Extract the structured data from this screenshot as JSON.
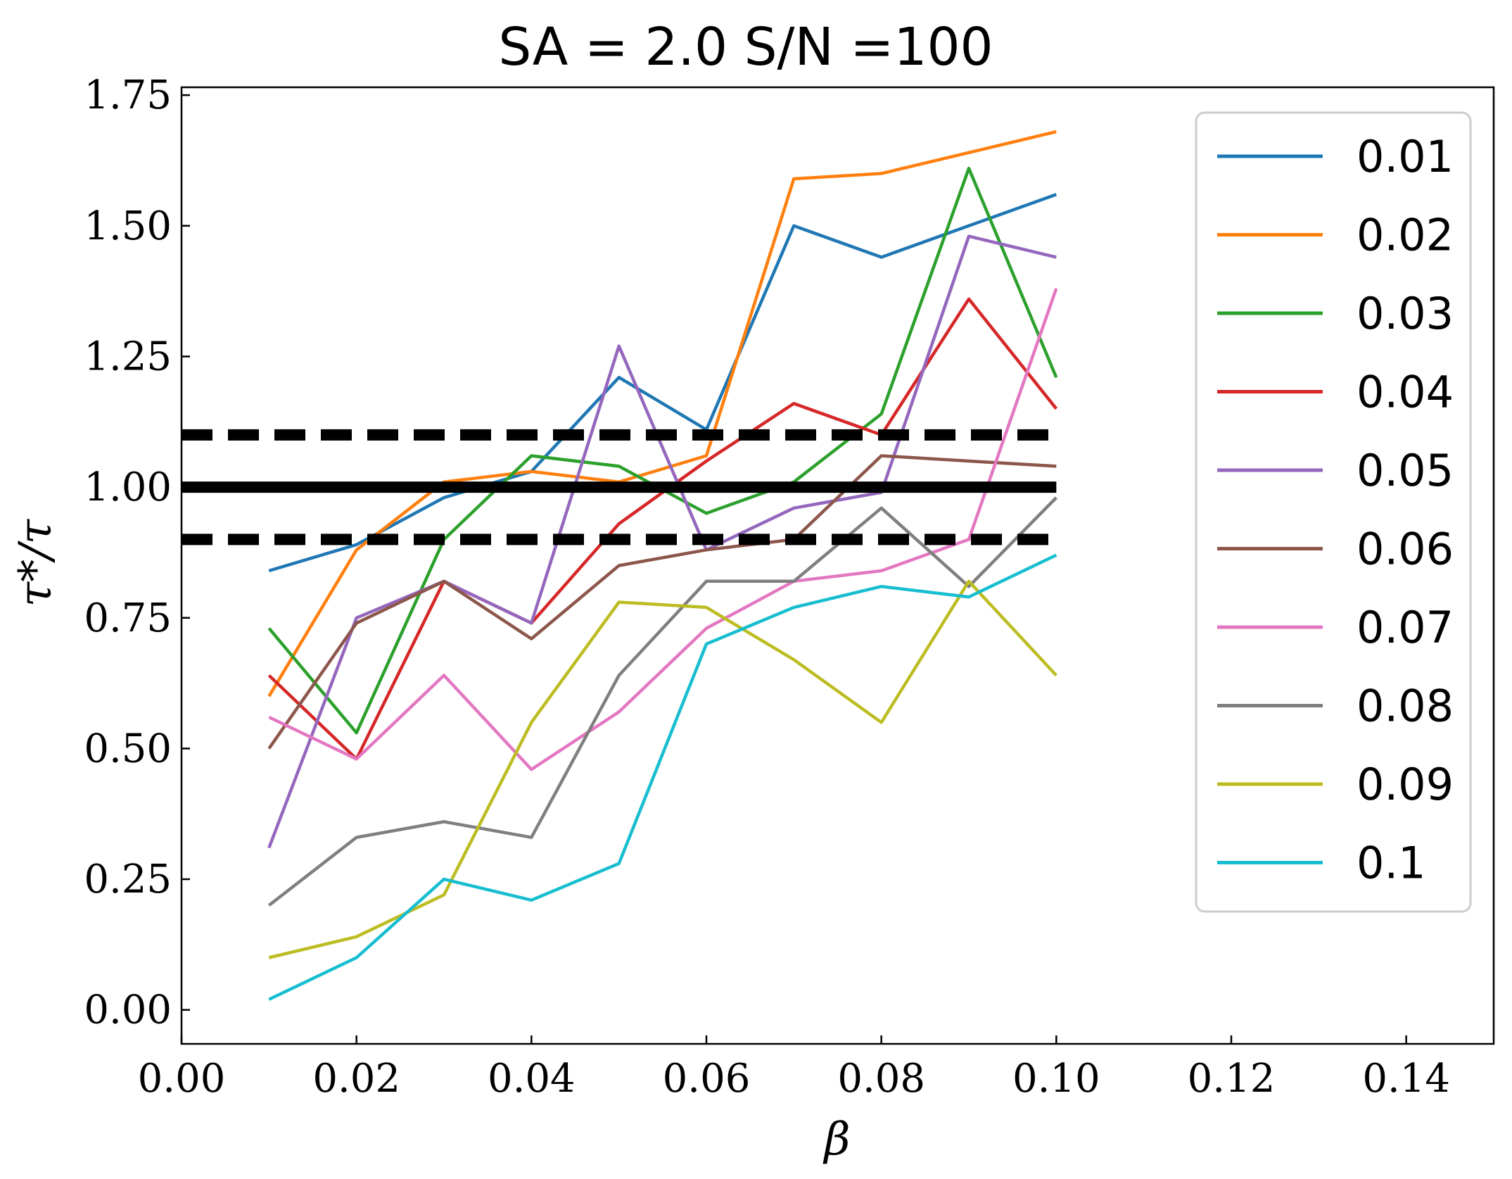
{
  "chart_data": {
    "type": "line",
    "title": "SA = 2.0 S/N =100",
    "xlabel": "β",
    "ylabel": "τ*/τ",
    "xlim": [
      0.0,
      0.15
    ],
    "ylim": [
      -0.065,
      1.765
    ],
    "x_ticks": [
      0.0,
      0.02,
      0.04,
      0.06,
      0.08,
      0.1,
      0.12,
      0.14
    ],
    "x_tick_labels": [
      "0.00",
      "0.02",
      "0.04",
      "0.06",
      "0.08",
      "0.10",
      "0.12",
      "0.14"
    ],
    "y_ticks": [
      0.0,
      0.25,
      0.5,
      0.75,
      1.0,
      1.25,
      1.5,
      1.75
    ],
    "y_tick_labels": [
      "0.00",
      "0.25",
      "0.50",
      "0.75",
      "1.00",
      "1.25",
      "1.50",
      "1.75"
    ],
    "grid": false,
    "legend_position": "right",
    "x": [
      0.01,
      0.02,
      0.03,
      0.04,
      0.05,
      0.06,
      0.07,
      0.08,
      0.09,
      0.1
    ],
    "reference_lines": [
      {
        "y": 1.0,
        "style": "solid",
        "color": "#000000"
      },
      {
        "y": 1.1,
        "style": "dashed",
        "color": "#000000"
      },
      {
        "y": 0.9,
        "style": "dashed",
        "color": "#000000"
      }
    ],
    "reference_x_range": [
      0.0,
      0.1
    ],
    "series": [
      {
        "name": "0.01",
        "color": "#1f77b4",
        "values": [
          0.84,
          0.89,
          0.98,
          1.03,
          1.21,
          1.11,
          1.5,
          1.44,
          1.5,
          1.56
        ]
      },
      {
        "name": "0.02",
        "color": "#ff7f0e",
        "values": [
          0.6,
          0.88,
          1.01,
          1.03,
          1.01,
          1.06,
          1.59,
          1.6,
          1.64,
          1.68
        ]
      },
      {
        "name": "0.03",
        "color": "#2ca02c",
        "values": [
          0.73,
          0.53,
          0.9,
          1.06,
          1.04,
          0.95,
          1.01,
          1.14,
          1.61,
          1.21
        ]
      },
      {
        "name": "0.04",
        "color": "#d62728",
        "values": [
          0.64,
          0.48,
          0.82,
          0.74,
          0.93,
          1.05,
          1.16,
          1.1,
          1.36,
          1.15
        ]
      },
      {
        "name": "0.05",
        "color": "#9467bd",
        "values": [
          0.31,
          0.75,
          0.82,
          0.74,
          1.27,
          0.88,
          0.96,
          0.99,
          1.48,
          1.44
        ]
      },
      {
        "name": "0.06",
        "color": "#8c564b",
        "values": [
          0.5,
          0.74,
          0.82,
          0.71,
          0.85,
          0.88,
          0.9,
          1.06,
          1.05,
          1.04
        ]
      },
      {
        "name": "0.07",
        "color": "#e377c2",
        "values": [
          0.56,
          0.48,
          0.64,
          0.46,
          0.57,
          0.73,
          0.82,
          0.84,
          0.9,
          1.38
        ]
      },
      {
        "name": "0.08",
        "color": "#7f7f7f",
        "values": [
          0.2,
          0.33,
          0.36,
          0.33,
          0.64,
          0.82,
          0.82,
          0.96,
          0.81,
          0.98
        ]
      },
      {
        "name": "0.09",
        "color": "#bcbd22",
        "values": [
          0.1,
          0.14,
          0.22,
          0.55,
          0.78,
          0.77,
          0.67,
          0.55,
          0.82,
          0.64
        ]
      },
      {
        "name": "0.1",
        "color": "#17becf",
        "values": [
          0.02,
          0.1,
          0.25,
          0.21,
          0.28,
          0.7,
          0.77,
          0.81,
          0.79,
          0.87
        ]
      }
    ]
  }
}
